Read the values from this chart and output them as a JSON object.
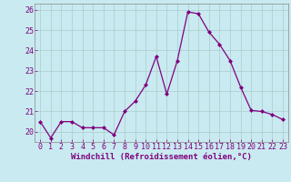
{
  "x": [
    0,
    1,
    2,
    3,
    4,
    5,
    6,
    7,
    8,
    9,
    10,
    11,
    12,
    13,
    14,
    15,
    16,
    17,
    18,
    19,
    20,
    21,
    22,
    23
  ],
  "y": [
    20.5,
    19.7,
    20.5,
    20.5,
    20.2,
    20.2,
    20.2,
    19.85,
    21.0,
    21.5,
    22.3,
    23.7,
    21.85,
    23.5,
    25.9,
    25.8,
    24.9,
    24.3,
    23.5,
    22.2,
    21.05,
    21.0,
    20.85,
    20.6
  ],
  "line_color": "#800080",
  "marker": "D",
  "marker_size": 2,
  "bg_color": "#c8eaf0",
  "grid_color": "#aacccc",
  "xlabel": "Windchill (Refroidissement éolien,°C)",
  "ylim": [
    19.5,
    26.3
  ],
  "yticks": [
    20,
    21,
    22,
    23,
    24,
    25,
    26
  ],
  "xticks": [
    0,
    1,
    2,
    3,
    4,
    5,
    6,
    7,
    8,
    9,
    10,
    11,
    12,
    13,
    14,
    15,
    16,
    17,
    18,
    19,
    20,
    21,
    22,
    23
  ],
  "label_fontsize": 6.5,
  "tick_fontsize": 6
}
